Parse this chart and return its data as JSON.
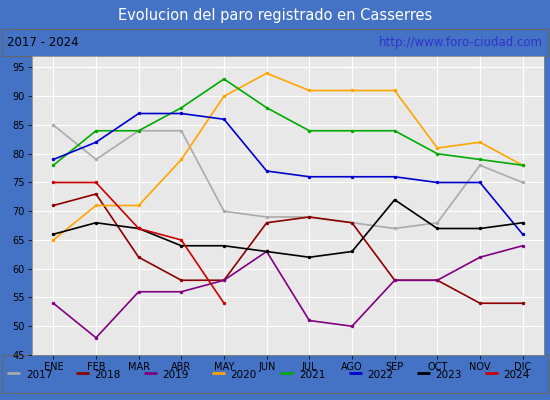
{
  "title": "Evolucion del paro registrado en Casserres",
  "subtitle_left": "2017 - 2024",
  "subtitle_right": "http://www.foro-ciudad.com",
  "xlabel_months": [
    "ENE",
    "FEB",
    "MAR",
    "ABR",
    "MAY",
    "JUN",
    "JUL",
    "AGO",
    "SEP",
    "OCT",
    "NOV",
    "DIC"
  ],
  "ylim": [
    45,
    97
  ],
  "yticks": [
    45,
    50,
    55,
    60,
    65,
    70,
    75,
    80,
    85,
    90,
    95
  ],
  "series": {
    "2017": {
      "color": "#aaaaaa",
      "data": [
        85,
        79,
        84,
        84,
        70,
        69,
        69,
        68,
        67,
        68,
        78,
        75
      ]
    },
    "2018": {
      "color": "#8b0000",
      "data": [
        71,
        73,
        62,
        58,
        58,
        68,
        69,
        68,
        58,
        58,
        54,
        54
      ]
    },
    "2019": {
      "color": "#800080",
      "data": [
        54,
        48,
        56,
        56,
        58,
        63,
        51,
        50,
        58,
        58,
        62,
        64
      ]
    },
    "2020": {
      "color": "#ffa500",
      "data": [
        65,
        71,
        71,
        79,
        90,
        94,
        91,
        91,
        91,
        81,
        82,
        78
      ]
    },
    "2021": {
      "color": "#00aa00",
      "data": [
        78,
        84,
        84,
        88,
        93,
        88,
        84,
        84,
        84,
        80,
        79,
        78
      ]
    },
    "2022": {
      "color": "#0000cc",
      "data": [
        79,
        82,
        87,
        87,
        86,
        77,
        76,
        76,
        76,
        75,
        75,
        66
      ]
    },
    "2023": {
      "color": "#000000",
      "data": [
        66,
        68,
        67,
        64,
        64,
        63,
        62,
        63,
        72,
        67,
        67,
        68
      ]
    },
    "2024": {
      "color": "#cc0000",
      "data": [
        75,
        75,
        67,
        65,
        54
      ]
    }
  },
  "title_bg": "#4472c4",
  "title_fg": "#ffffff",
  "outer_border": "#4472c4",
  "plot_bg": "#e8e8e8",
  "grid_color": "#ffffff",
  "legend_bg": "#f5f5f5",
  "border_color": "#999999",
  "year_keys": [
    "2017",
    "2018",
    "2019",
    "2020",
    "2021",
    "2022",
    "2023",
    "2024"
  ]
}
